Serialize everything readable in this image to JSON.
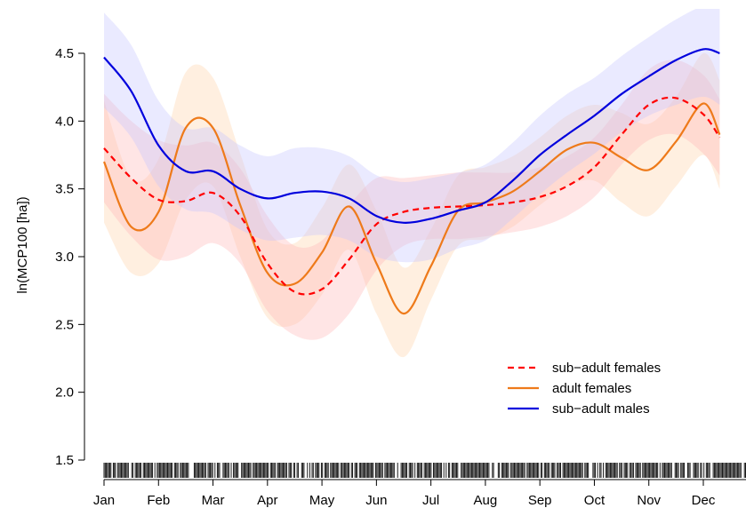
{
  "chart_data": {
    "type": "line",
    "title": "",
    "xlabel": "",
    "ylabel": "ln(MCP100 [ha])",
    "ylim": [
      1.5,
      4.5
    ],
    "yticks": [
      "1.5",
      "2.0",
      "2.5",
      "3.0",
      "3.5",
      "4.0",
      "4.5"
    ],
    "x_unit": "month index (Jan = 1)",
    "months": [
      "Jan",
      "Feb",
      "Mar",
      "Apr",
      "May",
      "Jun",
      "Jul",
      "Aug",
      "Sep",
      "Oct",
      "Nov",
      "Dec"
    ],
    "legend_position": "bottom-right",
    "rug": true,
    "series": [
      {
        "name": "sub−adult females",
        "color": "#ff0000",
        "dash": "dashed",
        "x": [
          1,
          1.5,
          2,
          2.5,
          3,
          3.5,
          4,
          4.5,
          5,
          5.5,
          6,
          6.5,
          7,
          7.5,
          8,
          8.5,
          9,
          9.5,
          10,
          10.5,
          11,
          11.5,
          12,
          12.3
        ],
        "y": [
          3.8,
          3.58,
          3.42,
          3.41,
          3.47,
          3.3,
          2.95,
          2.74,
          2.76,
          2.98,
          3.24,
          3.33,
          3.36,
          3.37,
          3.38,
          3.4,
          3.44,
          3.52,
          3.66,
          3.9,
          4.12,
          4.17,
          4.05,
          3.88
        ],
        "band_lower": [
          3.4,
          3.15,
          2.98,
          3.0,
          3.1,
          2.95,
          2.6,
          2.42,
          2.4,
          2.58,
          2.9,
          3.08,
          3.13,
          3.13,
          3.15,
          3.18,
          3.22,
          3.3,
          3.44,
          3.68,
          3.86,
          3.9,
          3.76,
          3.6
        ],
        "band_upper": [
          4.2,
          4.0,
          3.86,
          3.82,
          3.84,
          3.65,
          3.3,
          3.08,
          3.12,
          3.38,
          3.58,
          3.58,
          3.6,
          3.62,
          3.62,
          3.62,
          3.66,
          3.74,
          3.88,
          4.12,
          4.38,
          4.45,
          4.34,
          4.16
        ]
      },
      {
        "name": "adult females",
        "color": "#ee7a1a",
        "dash": "solid",
        "x": [
          1,
          1.5,
          2,
          2.5,
          3,
          3.5,
          4,
          4.5,
          5,
          5.5,
          6,
          6.5,
          7,
          7.5,
          8,
          8.5,
          9,
          9.5,
          10,
          10.5,
          11,
          11.5,
          12,
          12.3
        ],
        "y": [
          3.7,
          3.22,
          3.33,
          3.95,
          3.95,
          3.38,
          2.88,
          2.8,
          3.03,
          3.37,
          2.95,
          2.58,
          2.93,
          3.34,
          3.4,
          3.48,
          3.63,
          3.79,
          3.84,
          3.73,
          3.64,
          3.85,
          4.13,
          3.9
        ],
        "band_lower": [
          3.25,
          2.88,
          2.95,
          3.42,
          3.52,
          3.0,
          2.55,
          2.5,
          2.72,
          3.05,
          2.58,
          2.26,
          2.68,
          3.08,
          3.13,
          3.22,
          3.38,
          3.52,
          3.56,
          3.4,
          3.3,
          3.52,
          3.75,
          3.5
        ],
        "band_upper": [
          4.15,
          3.58,
          3.72,
          4.36,
          4.32,
          3.76,
          3.2,
          3.1,
          3.36,
          3.68,
          3.34,
          2.92,
          3.2,
          3.6,
          3.66,
          3.74,
          3.88,
          4.04,
          4.12,
          4.06,
          3.98,
          4.18,
          4.5,
          4.3
        ]
      },
      {
        "name": "sub−adult males",
        "color": "#0000dd",
        "dash": "solid",
        "x": [
          1,
          1.5,
          2,
          2.5,
          3,
          3.5,
          4,
          4.5,
          5,
          5.5,
          6,
          6.5,
          7,
          7.5,
          8,
          8.5,
          9,
          9.5,
          10,
          10.5,
          11,
          11.5,
          12,
          12.3
        ],
        "y": [
          4.47,
          4.22,
          3.82,
          3.63,
          3.63,
          3.5,
          3.43,
          3.47,
          3.48,
          3.43,
          3.3,
          3.25,
          3.28,
          3.34,
          3.4,
          3.56,
          3.75,
          3.9,
          4.04,
          4.2,
          4.33,
          4.45,
          4.53,
          4.5
        ],
        "band_lower": [
          4.1,
          3.88,
          3.52,
          3.35,
          3.32,
          3.2,
          3.12,
          3.14,
          3.16,
          3.12,
          3.0,
          2.96,
          2.98,
          3.06,
          3.12,
          3.28,
          3.46,
          3.62,
          3.76,
          3.92,
          4.04,
          4.12,
          4.18,
          4.12
        ],
        "band_upper": [
          4.8,
          4.56,
          4.15,
          3.95,
          3.95,
          3.82,
          3.74,
          3.8,
          3.8,
          3.74,
          3.6,
          3.55,
          3.58,
          3.62,
          3.68,
          3.84,
          4.04,
          4.2,
          4.32,
          4.48,
          4.62,
          4.75,
          4.85,
          4.85
        ]
      }
    ]
  }
}
